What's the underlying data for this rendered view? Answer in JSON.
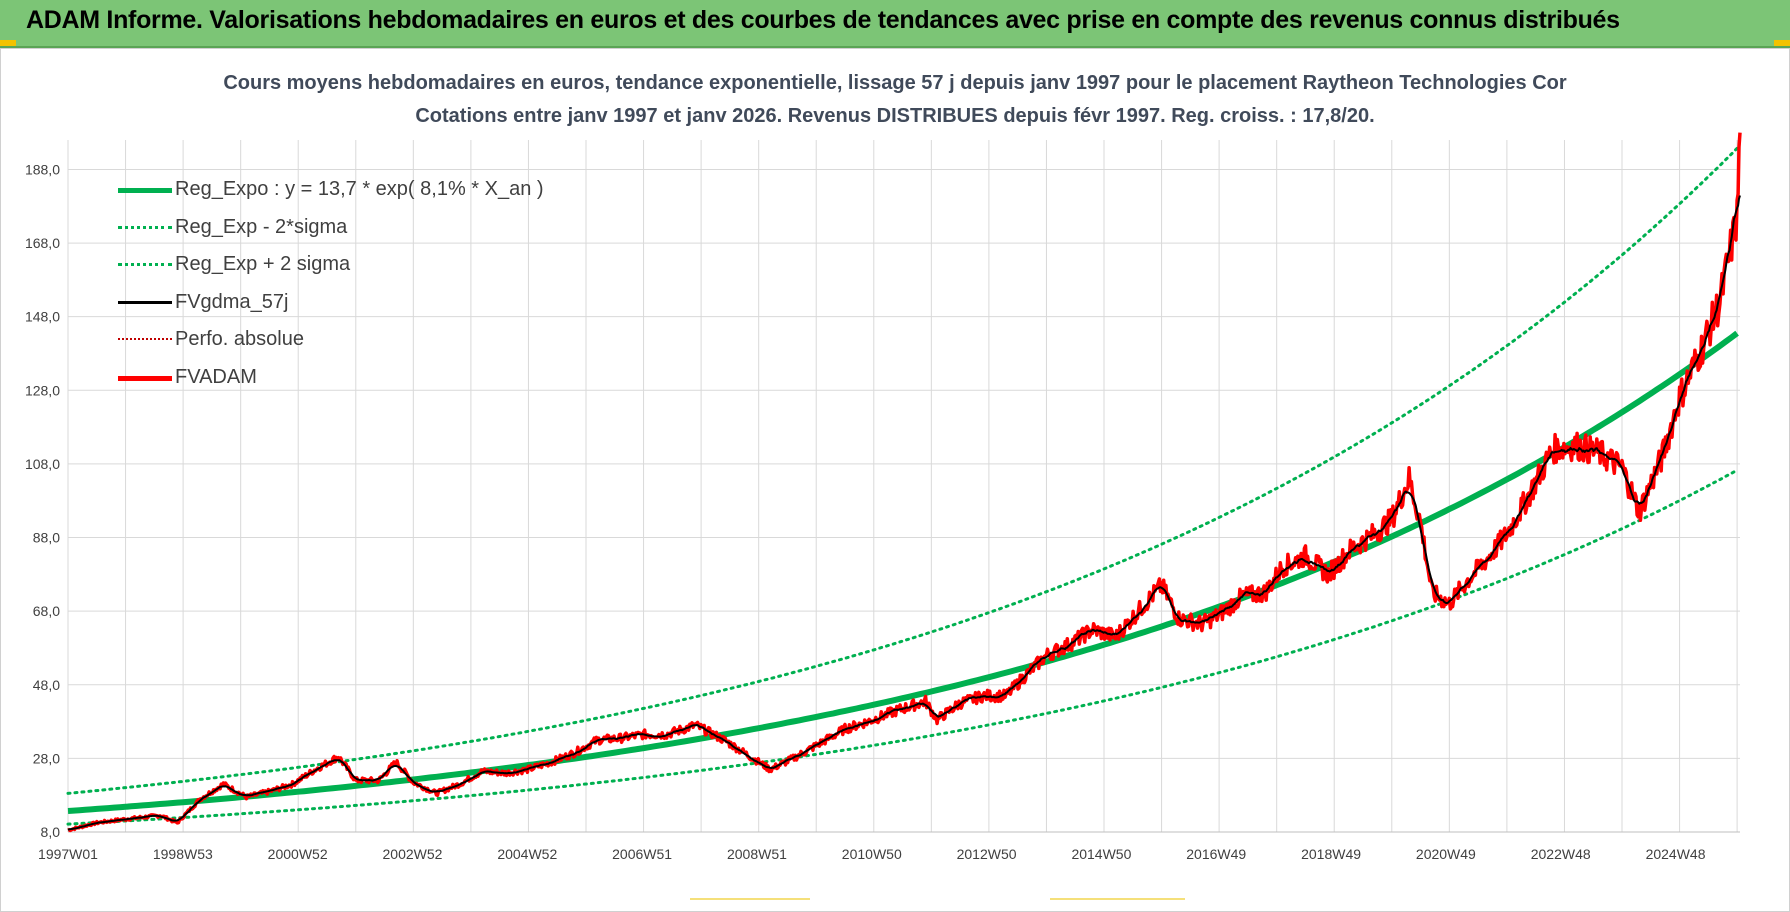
{
  "banner": {
    "title": "ADAM Informe. Valorisations hebdomadaires en euros et des courbes de tendances avec prise en compte des revenus connus distribués"
  },
  "colors": {
    "banner_bg": "#7cc576",
    "reg_expo": "#00b050",
    "fvgdma": "#000000",
    "fvadam": "#ff0000",
    "perfo": "#c00000",
    "grid": "#d9d9d9"
  },
  "chart_data": {
    "type": "line",
    "title": "Cours moyens hebdomadaires en euros, tendance exponentielle, lissage 57 j depuis janv 1997 pour le placement Raytheon Technologies Cor",
    "subtitle": "Cotations entre janv 1997 et janv 2026. Revenus DISTRIBUES depuis févr 1997. Reg. croiss. : 17,8/20.",
    "xlabel": "",
    "ylabel": "",
    "x_tick_labels": [
      "1997W01",
      "1998W53",
      "2000W52",
      "2002W52",
      "2004W52",
      "2006W51",
      "2008W51",
      "2010W50",
      "2012W50",
      "2014W50",
      "2016W49",
      "2018W49",
      "2020W49",
      "2022W48",
      "2024W48"
    ],
    "x_range_years": [
      1997.0,
      2026.05
    ],
    "y_tick_labels": [
      "8,0",
      "28,0",
      "48,0",
      "68,0",
      "88,0",
      "108,0",
      "128,0",
      "148,0",
      "168,0",
      "188,0"
    ],
    "ylim": [
      8,
      196
    ],
    "grid": true,
    "legend_position": "top-left",
    "regression": {
      "a": 13.7,
      "rate": 0.081,
      "sigma_factor": 1.35
    },
    "series": [
      {
        "name": "Reg_Expo : y = 13,7 * exp( 8,1% *  X_an )",
        "style": "thick-solid",
        "color": "#00b050",
        "role": "reg"
      },
      {
        "name": "Reg_Exp - 2*sigma",
        "style": "dotted",
        "color": "#00b050",
        "role": "reg_low"
      },
      {
        "name": "Reg_Exp + 2 sigma",
        "style": "dotted",
        "color": "#00b050",
        "role": "reg_high"
      },
      {
        "name": "FVgdma_57j",
        "style": "solid",
        "color": "#000000",
        "role": "smooth"
      },
      {
        "name": "Perfo. absolue",
        "style": "dotted-thin",
        "color": "#c00000",
        "role": "perfo"
      },
      {
        "name": "FVADAM",
        "style": "thick-solid",
        "color": "#ff0000",
        "role": "price"
      }
    ],
    "price_points": [
      [
        1997.0,
        8.5
      ],
      [
        1997.5,
        10.5
      ],
      [
        1998.0,
        11.5
      ],
      [
        1998.6,
        12.5
      ],
      [
        1998.9,
        10.5
      ],
      [
        1999.3,
        17.0
      ],
      [
        1999.7,
        21.0
      ],
      [
        2000.1,
        17.5
      ],
      [
        2000.5,
        19.0
      ],
      [
        2000.9,
        21.0
      ],
      [
        2001.3,
        25.0
      ],
      [
        2001.7,
        28.5
      ],
      [
        2002.0,
        22.0
      ],
      [
        2002.4,
        22.0
      ],
      [
        2002.7,
        27.0
      ],
      [
        2003.0,
        21.5
      ],
      [
        2003.4,
        18.5
      ],
      [
        2003.8,
        21.0
      ],
      [
        2004.2,
        24.5
      ],
      [
        2004.6,
        24.0
      ],
      [
        2005.0,
        25.0
      ],
      [
        2005.4,
        27.0
      ],
      [
        2005.8,
        29.5
      ],
      [
        2006.2,
        33.0
      ],
      [
        2006.6,
        33.5
      ],
      [
        2007.0,
        34.5
      ],
      [
        2007.4,
        34.5
      ],
      [
        2007.9,
        37.0
      ],
      [
        2008.4,
        33.0
      ],
      [
        2008.9,
        28.0
      ],
      [
        2009.2,
        25.0
      ],
      [
        2009.6,
        28.0
      ],
      [
        2010.0,
        31.5
      ],
      [
        2010.5,
        36.0
      ],
      [
        2010.9,
        38.0
      ],
      [
        2011.4,
        41.0
      ],
      [
        2011.9,
        43.5
      ],
      [
        2012.1,
        38.5
      ],
      [
        2012.5,
        43.0
      ],
      [
        2012.9,
        45.0
      ],
      [
        2013.3,
        45.0
      ],
      [
        2013.6,
        50.0
      ],
      [
        2014.0,
        56.0
      ],
      [
        2014.4,
        59.0
      ],
      [
        2014.8,
        63.0
      ],
      [
        2015.2,
        61.0
      ],
      [
        2015.6,
        68.0
      ],
      [
        2016.0,
        75.0
      ],
      [
        2016.3,
        66.0
      ],
      [
        2016.7,
        64.5
      ],
      [
        2017.0,
        67.0
      ],
      [
        2017.4,
        72.0
      ],
      [
        2017.8,
        73.0
      ],
      [
        2018.1,
        80.0
      ],
      [
        2018.5,
        83.0
      ],
      [
        2018.9,
        78.0
      ],
      [
        2019.3,
        85.0
      ],
      [
        2019.7,
        89.0
      ],
      [
        2020.0,
        93.0
      ],
      [
        2020.3,
        104.0
      ],
      [
        2020.5,
        92.0
      ],
      [
        2020.7,
        73.0
      ],
      [
        2021.0,
        70.0
      ],
      [
        2021.3,
        76.0
      ],
      [
        2021.7,
        83.0
      ],
      [
        2022.0,
        89.0
      ],
      [
        2022.4,
        100.0
      ],
      [
        2022.8,
        112.0
      ],
      [
        2023.2,
        113.0
      ],
      [
        2023.6,
        111.0
      ],
      [
        2024.0,
        107.0
      ],
      [
        2024.3,
        95.0
      ],
      [
        2024.7,
        110.0
      ],
      [
        2025.0,
        126.0
      ],
      [
        2025.4,
        140.0
      ],
      [
        2025.7,
        152.0
      ],
      [
        2026.0,
        175.0
      ],
      [
        2026.05,
        199.0
      ]
    ]
  }
}
